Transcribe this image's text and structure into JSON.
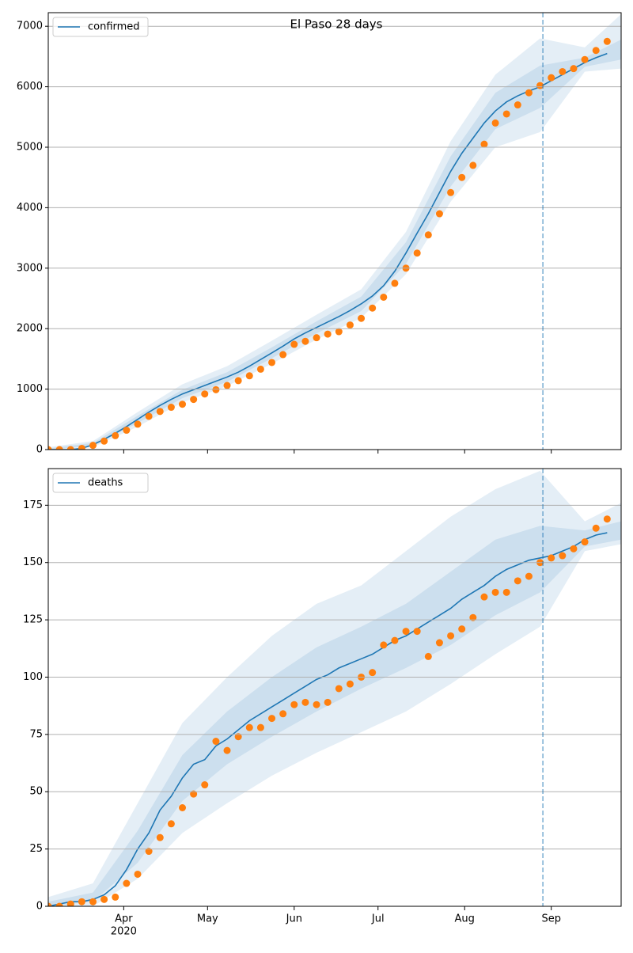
{
  "chart_data": [
    {
      "type": "line",
      "title": "El Paso 28 days",
      "x": [
        65,
        69,
        73,
        77,
        81,
        85,
        89,
        93,
        97,
        101,
        105,
        109,
        113,
        117,
        121,
        125,
        129,
        133,
        137,
        141,
        145,
        149,
        153,
        157,
        161,
        165,
        169,
        173,
        177,
        181,
        185,
        189,
        193,
        197,
        201,
        205,
        209,
        213,
        217,
        221,
        225,
        229,
        233,
        237,
        241,
        245,
        249,
        253,
        257,
        261,
        265
      ],
      "series": [
        {
          "name": "confirmed",
          "color": "#1f77b4",
          "values": [
            0,
            0,
            0,
            20,
            80,
            170,
            270,
            380,
            500,
            620,
            730,
            830,
            920,
            990,
            1060,
            1130,
            1200,
            1280,
            1380,
            1490,
            1600,
            1710,
            1830,
            1930,
            2020,
            2110,
            2200,
            2300,
            2410,
            2540,
            2710,
            2950,
            3250,
            3580,
            3900,
            4250,
            4600,
            4900,
            5150,
            5400,
            5600,
            5750,
            5850,
            5930,
            6000,
            6100,
            6200,
            6300,
            6400,
            6480,
            6550
          ]
        }
      ],
      "observed": {
        "color": "#ff7f0e",
        "values": [
          0,
          0,
          0,
          20,
          70,
          140,
          230,
          320,
          420,
          550,
          630,
          700,
          750,
          830,
          920,
          990,
          1060,
          1140,
          1220,
          1330,
          1440,
          1570,
          1740,
          1790,
          1850,
          1910,
          1950,
          2060,
          2170,
          2340,
          2520,
          2750,
          3000,
          3250,
          3550,
          3900,
          4250,
          4500,
          4700,
          5050,
          5400,
          5550,
          5700,
          5900,
          6020,
          6150,
          6250,
          6300,
          6450,
          6600,
          6750
        ]
      },
      "bands": {
        "color": "#1f77b4",
        "x": [
          65,
          81,
          97,
          113,
          129,
          145,
          161,
          177,
          193,
          209,
          225,
          241,
          257,
          270
        ],
        "levels": [
          {
            "lower": [
              0,
              40,
              380,
              780,
              1050,
              1420,
              1820,
              2180,
              2900,
              4100,
              5000,
              5250,
              6250,
              6300
            ],
            "upper": [
              40,
              140,
              620,
              1080,
              1380,
              1800,
              2230,
              2650,
              3600,
              5100,
              6200,
              6800,
              6650,
              7200
            ]
          },
          {
            "lower": [
              0,
              60,
              440,
              850,
              1120,
              1510,
              1920,
              2290,
              3070,
              4350,
              5300,
              5650,
              6330,
              6450
            ],
            "upper": [
              20,
              110,
              560,
              990,
              1280,
              1690,
              2120,
              2530,
              3430,
              4850,
              5900,
              6350,
              6480,
              6780
            ]
          }
        ]
      },
      "vline": 242,
      "xlim": [
        65,
        270
      ],
      "ylim": [
        0,
        7225
      ],
      "yticks": [
        0,
        1000,
        2000,
        3000,
        4000,
        5000,
        6000,
        7000
      ],
      "grid": true,
      "legend": "upper left"
    },
    {
      "type": "line",
      "x": [
        65,
        69,
        73,
        77,
        81,
        85,
        89,
        93,
        97,
        101,
        105,
        109,
        113,
        117,
        121,
        125,
        129,
        133,
        137,
        141,
        145,
        149,
        153,
        157,
        161,
        165,
        169,
        173,
        177,
        181,
        185,
        189,
        193,
        197,
        201,
        205,
        209,
        213,
        217,
        221,
        225,
        229,
        233,
        237,
        241,
        245,
        249,
        253,
        257,
        261,
        265
      ],
      "series": [
        {
          "name": "deaths",
          "color": "#1f77b4",
          "values": [
            0,
            1,
            2,
            2,
            3,
            5,
            9,
            16,
            25,
            32,
            42,
            48,
            56,
            62,
            64,
            70,
            73,
            77,
            81,
            84,
            87,
            90,
            93,
            96,
            99,
            101,
            104,
            106,
            108,
            110,
            113,
            116,
            118,
            121,
            124,
            127,
            130,
            134,
            137,
            140,
            144,
            147,
            149,
            151,
            152,
            153,
            155,
            157,
            160,
            162,
            163
          ]
        }
      ],
      "observed": {
        "color": "#ff7f0e",
        "values": [
          0,
          0,
          1,
          2,
          2,
          3,
          4,
          10,
          14,
          24,
          30,
          36,
          43,
          49,
          53,
          72,
          68,
          74,
          78,
          78,
          82,
          84,
          88,
          89,
          88,
          89,
          95,
          97,
          100,
          102,
          114,
          116,
          120,
          120,
          109,
          115,
          118,
          121,
          126,
          135,
          137,
          137,
          142,
          144,
          150,
          152,
          153,
          156,
          159,
          165,
          169
        ]
      },
      "bands": {
        "color": "#1f77b4",
        "x": [
          65,
          81,
          97,
          113,
          129,
          145,
          161,
          177,
          193,
          209,
          225,
          241,
          257,
          270
        ],
        "levels": [
          {
            "lower": [
              0,
              0,
              12,
              32,
              45,
              57,
              67,
              76,
              85,
              97,
              110,
              122,
              155,
              158
            ],
            "upper": [
              4,
              10,
              45,
              80,
              100,
              118,
              132,
              140,
              155,
              170,
              182,
              190,
              168,
              176
            ]
          },
          {
            "lower": [
              0,
              2,
              19,
              46,
              62,
              74,
              85,
              95,
              104,
              114,
              127,
              137,
              157,
              160
            ],
            "upper": [
              2,
              6,
              33,
              66,
              85,
              100,
              113,
              122,
              132,
              146,
              160,
              166,
              164,
              168
            ]
          }
        ]
      },
      "vline": 242,
      "xlim": [
        65,
        270
      ],
      "ylim": [
        0,
        191
      ],
      "yticks": [
        0,
        25,
        50,
        75,
        100,
        125,
        150,
        175
      ],
      "xticks": [
        {
          "value": 92,
          "label": "Apr"
        },
        {
          "value": 122,
          "label": "May"
        },
        {
          "value": 153,
          "label": "Jun"
        },
        {
          "value": 183,
          "label": "Jul"
        },
        {
          "value": 214,
          "label": "Aug"
        },
        {
          "value": 245,
          "label": "Sep"
        }
      ],
      "year_label": "2020",
      "grid": true,
      "legend": "upper left"
    }
  ]
}
